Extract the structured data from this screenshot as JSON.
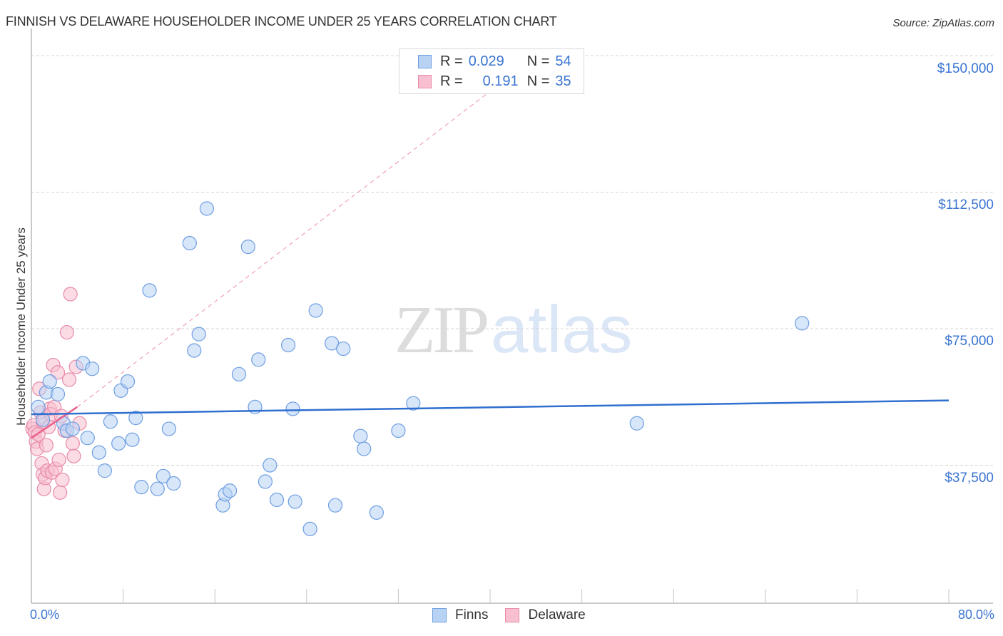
{
  "header": {
    "title": "FINNISH VS DELAWARE HOUSEHOLDER INCOME UNDER 25 YEARS CORRELATION CHART",
    "source": "Source: ZipAtlas.com"
  },
  "watermark": {
    "zip": "ZIP",
    "atlas": "atlas"
  },
  "axes": {
    "ylabel": "Householder Income Under 25 years",
    "y_ticks": [
      "$150,000",
      "$112,500",
      "$75,000",
      "$37,500"
    ],
    "x_min_label": "0.0%",
    "x_max_label": "80.0%"
  },
  "legend": {
    "finns": {
      "r_label": "R =",
      "r_value": "0.029",
      "n_label": "N =",
      "n_value": "54"
    },
    "delaware": {
      "r_label": "R =",
      "r_value": "0.191",
      "n_label": "N =",
      "n_value": "35"
    },
    "bottom": {
      "finns": "Finns",
      "delaware": "Delaware"
    }
  },
  "colors": {
    "finns_fill": "#b8d2f4",
    "finns_stroke": "#6d9ee2",
    "finns_line": "#2f6fcf",
    "delaware_fill": "#f7bfd0",
    "delaware_stroke": "#e98aa8",
    "delaware_line": "#e8608b",
    "tick_text": "#3a74d0"
  },
  "chart_data": {
    "type": "scatter",
    "title": "FINNISH VS DELAWARE HOUSEHOLDER INCOME UNDER 25 YEARS CORRELATION CHART",
    "xlabel": "",
    "ylabel": "Householder Income Under 25 years",
    "xlim": [
      0,
      80
    ],
    "ylim": [
      0,
      155000
    ],
    "x_unit": "%",
    "y_ticks": [
      37500,
      75000,
      112500,
      150000
    ],
    "grid": true,
    "legend_position": "top-center and bottom-center",
    "series": [
      {
        "name": "Finns",
        "r": 0.029,
        "n": 54,
        "trend": {
          "x": [
            0,
            80
          ],
          "y": [
            51500,
            55300
          ]
        },
        "points": [
          [
            0.6,
            53500
          ],
          [
            1.0,
            50000
          ],
          [
            1.3,
            57500
          ],
          [
            1.6,
            60500
          ],
          [
            2.3,
            57000
          ],
          [
            2.8,
            49000
          ],
          [
            3.1,
            47000
          ],
          [
            3.6,
            47500
          ],
          [
            4.5,
            65500
          ],
          [
            4.9,
            45000
          ],
          [
            5.3,
            64000
          ],
          [
            5.9,
            41000
          ],
          [
            6.4,
            36000
          ],
          [
            6.9,
            49500
          ],
          [
            7.6,
            43500
          ],
          [
            7.8,
            58000
          ],
          [
            8.4,
            60500
          ],
          [
            8.8,
            44500
          ],
          [
            9.1,
            50500
          ],
          [
            9.6,
            31500
          ],
          [
            10.3,
            85500
          ],
          [
            11.0,
            31000
          ],
          [
            11.5,
            34500
          ],
          [
            12.0,
            47500
          ],
          [
            12.4,
            32500
          ],
          [
            13.8,
            98500
          ],
          [
            14.2,
            69000
          ],
          [
            14.6,
            73500
          ],
          [
            15.3,
            108000
          ],
          [
            16.7,
            26500
          ],
          [
            16.9,
            29500
          ],
          [
            17.3,
            30500
          ],
          [
            18.1,
            62500
          ],
          [
            18.9,
            97500
          ],
          [
            19.5,
            53500
          ],
          [
            19.8,
            66500
          ],
          [
            20.4,
            33000
          ],
          [
            20.8,
            37500
          ],
          [
            21.4,
            28000
          ],
          [
            22.4,
            70500
          ],
          [
            22.8,
            53000
          ],
          [
            23.0,
            27500
          ],
          [
            24.3,
            20000
          ],
          [
            24.8,
            80000
          ],
          [
            26.2,
            71000
          ],
          [
            26.5,
            26500
          ],
          [
            27.2,
            69500
          ],
          [
            28.7,
            45500
          ],
          [
            29.0,
            42000
          ],
          [
            30.1,
            24500
          ],
          [
            32.0,
            47000
          ],
          [
            33.3,
            54500
          ],
          [
            52.8,
            49000
          ],
          [
            67.2,
            76500
          ]
        ]
      },
      {
        "name": "Delaware",
        "r": 0.191,
        "n": 35,
        "trend": {
          "x": [
            0,
            4.0
          ],
          "y": [
            45000,
            53500
          ]
        },
        "trend_extension": {
          "x": [
            4.0,
            42.0
          ],
          "y": [
            53500,
            145000
          ],
          "style": "dashed"
        },
        "points": [
          [
            0.1,
            47500
          ],
          [
            0.2,
            48500
          ],
          [
            0.3,
            46500
          ],
          [
            0.4,
            44000
          ],
          [
            0.5,
            42000
          ],
          [
            0.6,
            46000
          ],
          [
            0.7,
            58500
          ],
          [
            0.8,
            52000
          ],
          [
            0.9,
            38000
          ],
          [
            1.0,
            49500
          ],
          [
            1.0,
            35000
          ],
          [
            1.1,
            31000
          ],
          [
            1.2,
            34000
          ],
          [
            1.3,
            43000
          ],
          [
            1.4,
            36000
          ],
          [
            1.5,
            48000
          ],
          [
            1.6,
            53000
          ],
          [
            1.7,
            51500
          ],
          [
            1.8,
            35500
          ],
          [
            1.9,
            65000
          ],
          [
            2.0,
            53500
          ],
          [
            2.1,
            36500
          ],
          [
            2.3,
            63000
          ],
          [
            2.4,
            39000
          ],
          [
            2.5,
            30000
          ],
          [
            2.6,
            51000
          ],
          [
            2.7,
            33500
          ],
          [
            2.9,
            47000
          ],
          [
            3.1,
            74000
          ],
          [
            3.3,
            61000
          ],
          [
            3.4,
            84500
          ],
          [
            3.6,
            43500
          ],
          [
            3.7,
            40000
          ],
          [
            3.9,
            64500
          ],
          [
            4.2,
            49000
          ]
        ]
      }
    ]
  }
}
